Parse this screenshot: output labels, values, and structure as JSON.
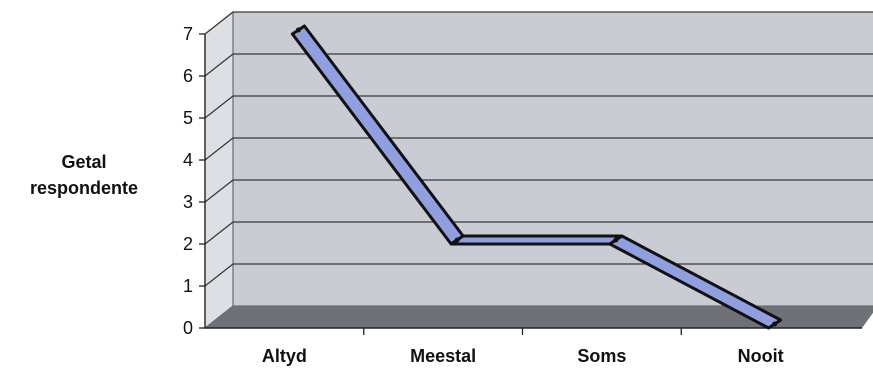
{
  "chart_data": {
    "type": "line",
    "style": "3d-ribbon",
    "categories": [
      "Altyd",
      "Meestal",
      "Soms",
      "Nooit"
    ],
    "series": [
      {
        "values": [
          7,
          2,
          2,
          0
        ]
      }
    ],
    "ylabel_lines": [
      "Getal",
      "respondente"
    ],
    "yticks": [
      0,
      1,
      2,
      3,
      4,
      5,
      6,
      7
    ],
    "ylim": [
      0,
      7
    ],
    "grid": true,
    "legend": "none",
    "colors": {
      "line_fill": "#8f9fe0",
      "line_edge": "#111111",
      "wall": "#c9cdd3",
      "floor": "#6e7176",
      "side_wall": "#dcdfe4",
      "gridline": "#3a3a3a"
    }
  }
}
